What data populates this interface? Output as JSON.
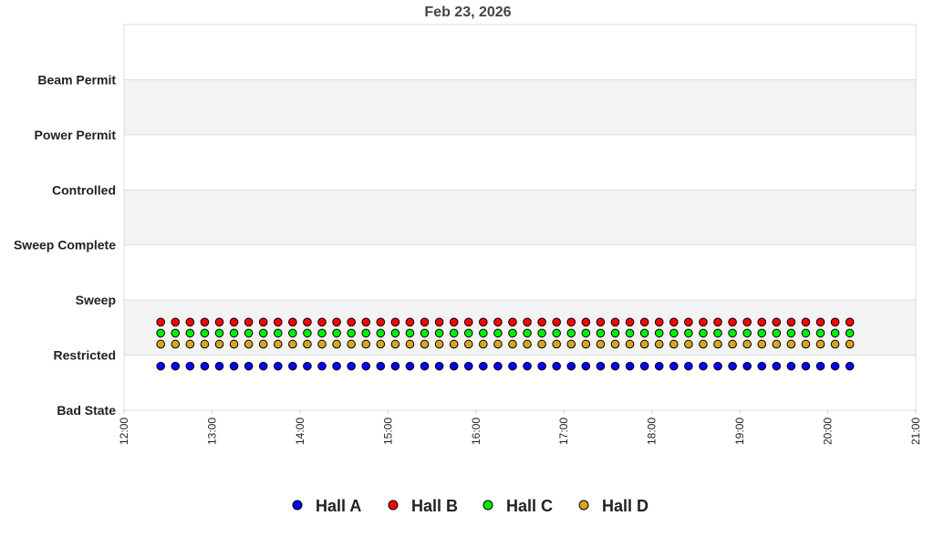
{
  "chart_data": {
    "type": "scatter",
    "title": "Feb 23, 2026",
    "xlabel": "",
    "ylabel": "",
    "xlim": [
      "12:00",
      "21:00"
    ],
    "x_ticks": [
      "12:00",
      "13:00",
      "14:00",
      "15:00",
      "16:00",
      "17:00",
      "18:00",
      "19:00",
      "20:00",
      "21:00"
    ],
    "y_categories": [
      "Bad State",
      "Restricted",
      "Sweep",
      "Sweep Complete",
      "Controlled",
      "Power Permit",
      "Beam Permit"
    ],
    "grid": "alternating horizontal bands",
    "legend_position": "bottom",
    "x": [
      "12:25",
      "12:35",
      "12:45",
      "12:55",
      "13:05",
      "13:15",
      "13:25",
      "13:35",
      "13:45",
      "13:55",
      "14:05",
      "14:15",
      "14:25",
      "14:35",
      "14:45",
      "14:55",
      "15:05",
      "15:15",
      "15:25",
      "15:35",
      "15:45",
      "15:55",
      "16:05",
      "16:15",
      "16:25",
      "16:35",
      "16:45",
      "16:55",
      "17:05",
      "17:15",
      "17:25",
      "17:35",
      "17:45",
      "17:55",
      "18:05",
      "18:15",
      "18:25",
      "18:35",
      "18:45",
      "18:55",
      "19:05",
      "19:15",
      "19:25",
      "19:35",
      "19:45",
      "19:55",
      "20:05",
      "20:15"
    ],
    "series": [
      {
        "name": "Hall A",
        "color": "#0000ff",
        "value": "Restricted"
      },
      {
        "name": "Hall B",
        "color": "#ff0000",
        "value": "Restricted"
      },
      {
        "name": "Hall C",
        "color": "#00ee00",
        "value": "Restricted"
      },
      {
        "name": "Hall D",
        "color": "#daa520",
        "value": "Restricted"
      }
    ]
  }
}
